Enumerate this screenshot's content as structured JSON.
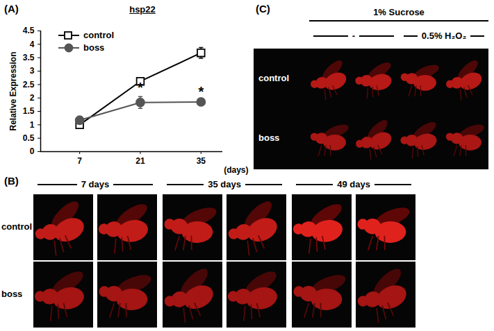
{
  "chart_data": {
    "type": "line",
    "title": "hsp22",
    "xlabel": "(days)",
    "ylabel": "Relative Expression",
    "x": [
      7,
      21,
      35
    ],
    "xlim": [
      -2,
      40
    ],
    "xticks": [
      7,
      21,
      35
    ],
    "ylim": [
      0,
      4.5
    ],
    "yticks": [
      0,
      0.5,
      1,
      1.5,
      2,
      2.5,
      3,
      3.5,
      4,
      4.5
    ],
    "legend": "top-left",
    "series": [
      {
        "name": "control",
        "color": "#000000",
        "marker": "open-square",
        "values": [
          1.0,
          2.62,
          3.68
        ],
        "errors": [
          0.06,
          0.12,
          0.2
        ]
      },
      {
        "name": "boss",
        "color": "#555555",
        "marker": "filled-circle",
        "values": [
          1.17,
          1.83,
          1.85
        ],
        "errors": [
          0.04,
          0.22,
          0.04
        ],
        "significance": [
          null,
          "*",
          "*"
        ]
      }
    ]
  },
  "panels": {
    "A": {
      "label": "(A)"
    },
    "B": {
      "label": "(B)",
      "groups": [
        "7 days",
        "35 days",
        "49 days"
      ],
      "rows": [
        "control",
        "boss"
      ]
    },
    "C": {
      "label": "(C)",
      "header": "1% Sucrose",
      "groups": [
        "-",
        "0.5% H₂O₂"
      ],
      "rows": [
        "control",
        "boss"
      ]
    }
  }
}
